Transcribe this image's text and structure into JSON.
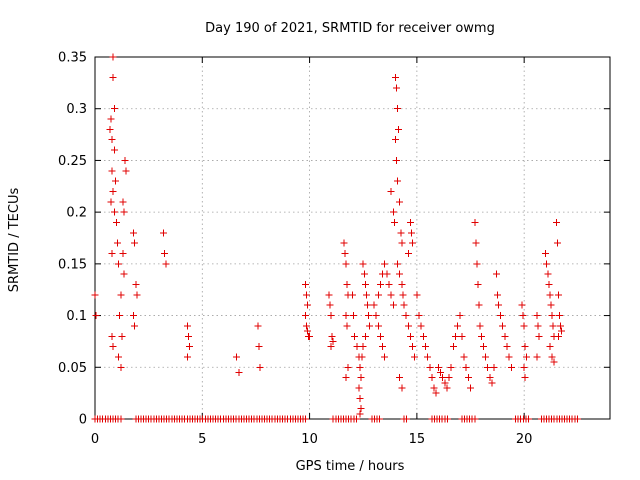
{
  "chart_data": {
    "type": "scatter",
    "title": "Day 190 of 2021, SRMTID for receiver owmg",
    "xlabel": "GPS time / hours",
    "ylabel": "SRMTID / TECUs",
    "xlim": [
      0,
      24
    ],
    "ylim": [
      0,
      0.35
    ],
    "xticks": [
      0,
      5,
      10,
      15,
      20
    ],
    "xtick_labels": [
      "0",
      "5",
      "10",
      "15",
      "20"
    ],
    "yticks": [
      0,
      0.05,
      0.1,
      0.15,
      0.2,
      0.25,
      0.3,
      0.35
    ],
    "ytick_labels": [
      "0",
      "0.05",
      "0.1",
      "0.15",
      "0.2",
      "0.25",
      "0.3",
      "0.35"
    ],
    "grid": true,
    "marker": "+",
    "color": "#e00000",
    "series": [
      {
        "name": "SRMTID",
        "points": [
          [
            0.0,
            0.12
          ],
          [
            0.05,
            0.1
          ],
          [
            0.7,
            0.28
          ],
          [
            0.75,
            0.29
          ],
          [
            0.8,
            0.27
          ],
          [
            0.85,
            0.35
          ],
          [
            0.85,
            0.33
          ],
          [
            0.9,
            0.3
          ],
          [
            0.8,
            0.24
          ],
          [
            0.85,
            0.22
          ],
          [
            0.75,
            0.21
          ],
          [
            0.9,
            0.2
          ],
          [
            0.8,
            0.16
          ],
          [
            0.9,
            0.26
          ],
          [
            0.95,
            0.23
          ],
          [
            1.0,
            0.19
          ],
          [
            1.05,
            0.17
          ],
          [
            1.1,
            0.15
          ],
          [
            1.2,
            0.12
          ],
          [
            1.15,
            0.1
          ],
          [
            1.25,
            0.08
          ],
          [
            1.1,
            0.06
          ],
          [
            1.2,
            0.05
          ],
          [
            1.3,
            0.21
          ],
          [
            1.35,
            0.2
          ],
          [
            1.4,
            0.25
          ],
          [
            1.45,
            0.24
          ],
          [
            1.3,
            0.16
          ],
          [
            1.35,
            0.14
          ],
          [
            0.8,
            0.08
          ],
          [
            0.85,
            0.07
          ],
          [
            1.8,
            0.18
          ],
          [
            1.85,
            0.17
          ],
          [
            1.9,
            0.13
          ],
          [
            1.95,
            0.12
          ],
          [
            1.8,
            0.1
          ],
          [
            1.85,
            0.09
          ],
          [
            3.2,
            0.18
          ],
          [
            3.25,
            0.16
          ],
          [
            3.3,
            0.15
          ],
          [
            4.3,
            0.09
          ],
          [
            4.35,
            0.08
          ],
          [
            4.4,
            0.07
          ],
          [
            4.3,
            0.06
          ],
          [
            6.6,
            0.06
          ],
          [
            6.7,
            0.045
          ],
          [
            7.6,
            0.09
          ],
          [
            7.65,
            0.07
          ],
          [
            7.7,
            0.05
          ],
          [
            9.8,
            0.13
          ],
          [
            9.85,
            0.12
          ],
          [
            9.9,
            0.11
          ],
          [
            9.8,
            0.1
          ],
          [
            9.85,
            0.09
          ],
          [
            9.9,
            0.085
          ],
          [
            9.95,
            0.08
          ],
          [
            10.0,
            0.08
          ],
          [
            10.9,
            0.12
          ],
          [
            10.95,
            0.11
          ],
          [
            11.0,
            0.1
          ],
          [
            11.05,
            0.08
          ],
          [
            11.1,
            0.075
          ],
          [
            11.0,
            0.07
          ],
          [
            11.6,
            0.17
          ],
          [
            11.65,
            0.16
          ],
          [
            11.7,
            0.15
          ],
          [
            11.75,
            0.13
          ],
          [
            11.8,
            0.12
          ],
          [
            11.7,
            0.1
          ],
          [
            11.75,
            0.09
          ],
          [
            11.8,
            0.05
          ],
          [
            11.7,
            0.04
          ],
          [
            12.0,
            0.12
          ],
          [
            12.05,
            0.1
          ],
          [
            12.1,
            0.08
          ],
          [
            12.2,
            0.07
          ],
          [
            12.3,
            0.06
          ],
          [
            12.35,
            0.05
          ],
          [
            12.4,
            0.04
          ],
          [
            12.3,
            0.03
          ],
          [
            12.35,
            0.02
          ],
          [
            12.4,
            0.01
          ],
          [
            12.35,
            0.005
          ],
          [
            12.5,
            0.15
          ],
          [
            12.55,
            0.14
          ],
          [
            12.6,
            0.13
          ],
          [
            12.65,
            0.12
          ],
          [
            12.7,
            0.11
          ],
          [
            12.75,
            0.1
          ],
          [
            12.8,
            0.09
          ],
          [
            12.6,
            0.08
          ],
          [
            12.5,
            0.07
          ],
          [
            12.45,
            0.06
          ],
          [
            13.0,
            0.11
          ],
          [
            13.1,
            0.1
          ],
          [
            13.2,
            0.09
          ],
          [
            13.3,
            0.08
          ],
          [
            13.4,
            0.07
          ],
          [
            13.5,
            0.06
          ],
          [
            13.2,
            0.12
          ],
          [
            13.3,
            0.13
          ],
          [
            13.4,
            0.14
          ],
          [
            13.5,
            0.15
          ],
          [
            13.6,
            0.14
          ],
          [
            13.7,
            0.13
          ],
          [
            13.8,
            0.12
          ],
          [
            13.9,
            0.11
          ],
          [
            13.8,
            0.22
          ],
          [
            13.9,
            0.2
          ],
          [
            13.95,
            0.19
          ],
          [
            14.0,
            0.33
          ],
          [
            14.05,
            0.32
          ],
          [
            14.1,
            0.3
          ],
          [
            14.15,
            0.28
          ],
          [
            14.0,
            0.27
          ],
          [
            14.05,
            0.25
          ],
          [
            14.1,
            0.23
          ],
          [
            14.2,
            0.21
          ],
          [
            14.25,
            0.18
          ],
          [
            14.3,
            0.17
          ],
          [
            14.1,
            0.15
          ],
          [
            14.2,
            0.14
          ],
          [
            14.3,
            0.13
          ],
          [
            14.35,
            0.12
          ],
          [
            14.4,
            0.11
          ],
          [
            14.5,
            0.1
          ],
          [
            14.6,
            0.09
          ],
          [
            14.7,
            0.08
          ],
          [
            14.8,
            0.07
          ],
          [
            14.9,
            0.06
          ],
          [
            14.7,
            0.19
          ],
          [
            14.75,
            0.18
          ],
          [
            14.8,
            0.17
          ],
          [
            14.6,
            0.16
          ],
          [
            14.2,
            0.04
          ],
          [
            14.3,
            0.03
          ],
          [
            15.0,
            0.12
          ],
          [
            15.1,
            0.1
          ],
          [
            15.2,
            0.09
          ],
          [
            15.3,
            0.08
          ],
          [
            15.4,
            0.07
          ],
          [
            15.5,
            0.06
          ],
          [
            15.6,
            0.05
          ],
          [
            15.7,
            0.04
          ],
          [
            15.8,
            0.03
          ],
          [
            15.9,
            0.025
          ],
          [
            16.0,
            0.05
          ],
          [
            16.1,
            0.045
          ],
          [
            16.2,
            0.04
          ],
          [
            16.3,
            0.035
          ],
          [
            16.4,
            0.03
          ],
          [
            16.5,
            0.04
          ],
          [
            16.6,
            0.05
          ],
          [
            16.7,
            0.07
          ],
          [
            16.8,
            0.08
          ],
          [
            16.9,
            0.09
          ],
          [
            17.0,
            0.1
          ],
          [
            17.1,
            0.08
          ],
          [
            17.2,
            0.06
          ],
          [
            17.3,
            0.05
          ],
          [
            17.4,
            0.04
          ],
          [
            17.5,
            0.03
          ],
          [
            17.7,
            0.19
          ],
          [
            17.75,
            0.17
          ],
          [
            17.8,
            0.15
          ],
          [
            17.85,
            0.13
          ],
          [
            17.9,
            0.11
          ],
          [
            17.95,
            0.09
          ],
          [
            18.0,
            0.08
          ],
          [
            18.1,
            0.07
          ],
          [
            18.2,
            0.06
          ],
          [
            18.3,
            0.05
          ],
          [
            18.4,
            0.04
          ],
          [
            18.5,
            0.035
          ],
          [
            18.6,
            0.05
          ],
          [
            18.7,
            0.14
          ],
          [
            18.75,
            0.12
          ],
          [
            18.8,
            0.11
          ],
          [
            18.9,
            0.1
          ],
          [
            19.0,
            0.09
          ],
          [
            19.1,
            0.08
          ],
          [
            19.2,
            0.07
          ],
          [
            19.3,
            0.06
          ],
          [
            19.4,
            0.05
          ],
          [
            19.9,
            0.11
          ],
          [
            19.95,
            0.1
          ],
          [
            20.0,
            0.09
          ],
          [
            20.05,
            0.07
          ],
          [
            20.1,
            0.06
          ],
          [
            20.0,
            0.05
          ],
          [
            20.05,
            0.04
          ],
          [
            20.6,
            0.1
          ],
          [
            20.65,
            0.09
          ],
          [
            20.7,
            0.08
          ],
          [
            20.6,
            0.06
          ],
          [
            21.0,
            0.16
          ],
          [
            21.05,
            0.15
          ],
          [
            21.1,
            0.14
          ],
          [
            21.15,
            0.13
          ],
          [
            21.2,
            0.12
          ],
          [
            21.25,
            0.11
          ],
          [
            21.3,
            0.1
          ],
          [
            21.35,
            0.09
          ],
          [
            21.4,
            0.08
          ],
          [
            21.2,
            0.07
          ],
          [
            21.3,
            0.06
          ],
          [
            21.4,
            0.055
          ],
          [
            21.5,
            0.19
          ],
          [
            21.55,
            0.17
          ],
          [
            21.6,
            0.12
          ],
          [
            21.65,
            0.1
          ],
          [
            21.7,
            0.09
          ],
          [
            21.75,
            0.085
          ],
          [
            21.6,
            0.08
          ]
        ]
      }
    ],
    "baseline_zero_ranges_hours": [
      [
        0.0,
        1.3
      ],
      [
        1.9,
        9.9
      ],
      [
        11.1,
        12.2
      ],
      [
        12.9,
        13.3
      ],
      [
        14.4,
        14.6
      ],
      [
        15.7,
        16.5
      ],
      [
        17.1,
        17.8
      ],
      [
        19.6,
        20.3
      ],
      [
        20.8,
        22.5
      ]
    ]
  }
}
